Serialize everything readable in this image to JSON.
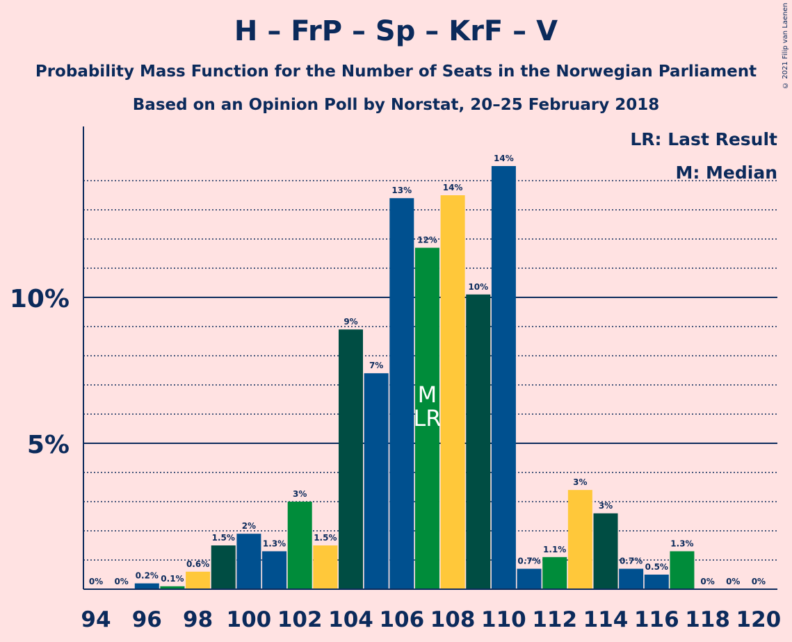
{
  "title": "H – FrP – Sp – KrF – V",
  "subtitle1": "Probability Mass Function for the Number of Seats in the Norwegian Parliament",
  "subtitle2": "Based on an Opinion Poll by Norstat, 20–25 February 2018",
  "copyright": "© 2021 Filip van Laenen",
  "legend": {
    "lr": "LR: Last Result",
    "m": "M: Median"
  },
  "colors": {
    "background": "#FFE2E2",
    "text": "#0B2A5B",
    "palette": [
      "#004D43",
      "#00508F",
      "#008C3A",
      "#FFC83A"
    ]
  },
  "chart_data": {
    "type": "bar",
    "x": [
      94,
      95,
      96,
      97,
      98,
      99,
      100,
      101,
      102,
      103,
      104,
      105,
      106,
      107,
      108,
      109,
      110,
      111,
      112,
      113,
      114,
      115,
      116,
      117,
      118,
      119,
      120
    ],
    "values": [
      0,
      0,
      0.2,
      0.1,
      0.6,
      1.5,
      1.9,
      1.3,
      3.0,
      1.5,
      8.9,
      7.4,
      13.4,
      11.7,
      13.5,
      10.1,
      14.5,
      0.7,
      1.1,
      3.4,
      2.6,
      0.7,
      0.5,
      1.3,
      0,
      0,
      0
    ],
    "labels": [
      "0%",
      "0%",
      "0.2%",
      "0.1%",
      "0.6%",
      "1.5%",
      "2%",
      "1.3%",
      "3%",
      "1.5%",
      "9%",
      "7%",
      "13%",
      "12%",
      "14%",
      "10%",
      "14%",
      "0.7%",
      "1.1%",
      "3%",
      "3%",
      "0.7%",
      "0.5%",
      "1.3%",
      "0%",
      "0%",
      "0%"
    ],
    "bar_colors": [
      "#004D43",
      "#00508F",
      "#00508F",
      "#008C3A",
      "#FFC83A",
      "#004D43",
      "#00508F",
      "#00508F",
      "#008C3A",
      "#FFC83A",
      "#004D43",
      "#00508F",
      "#00508F",
      "#008C3A",
      "#FFC83A",
      "#004D43",
      "#00508F",
      "#00508F",
      "#008C3A",
      "#FFC83A",
      "#004D43",
      "#00508F",
      "#00508F",
      "#008C3A",
      "#FFC83A",
      "#004D43",
      "#00508F"
    ],
    "x_tick_labels": [
      "94",
      "96",
      "98",
      "100",
      "102",
      "104",
      "106",
      "108",
      "110",
      "112",
      "114",
      "116",
      "118",
      "120"
    ],
    "y_tick_labels": [
      {
        "value": 5,
        "label": "5%"
      },
      {
        "value": 10,
        "label": "10%"
      }
    ],
    "ylim": [
      0,
      15.8
    ],
    "median_seat": 107,
    "last_result_seat": 107,
    "median_label": "M",
    "last_result_label": "LR"
  }
}
